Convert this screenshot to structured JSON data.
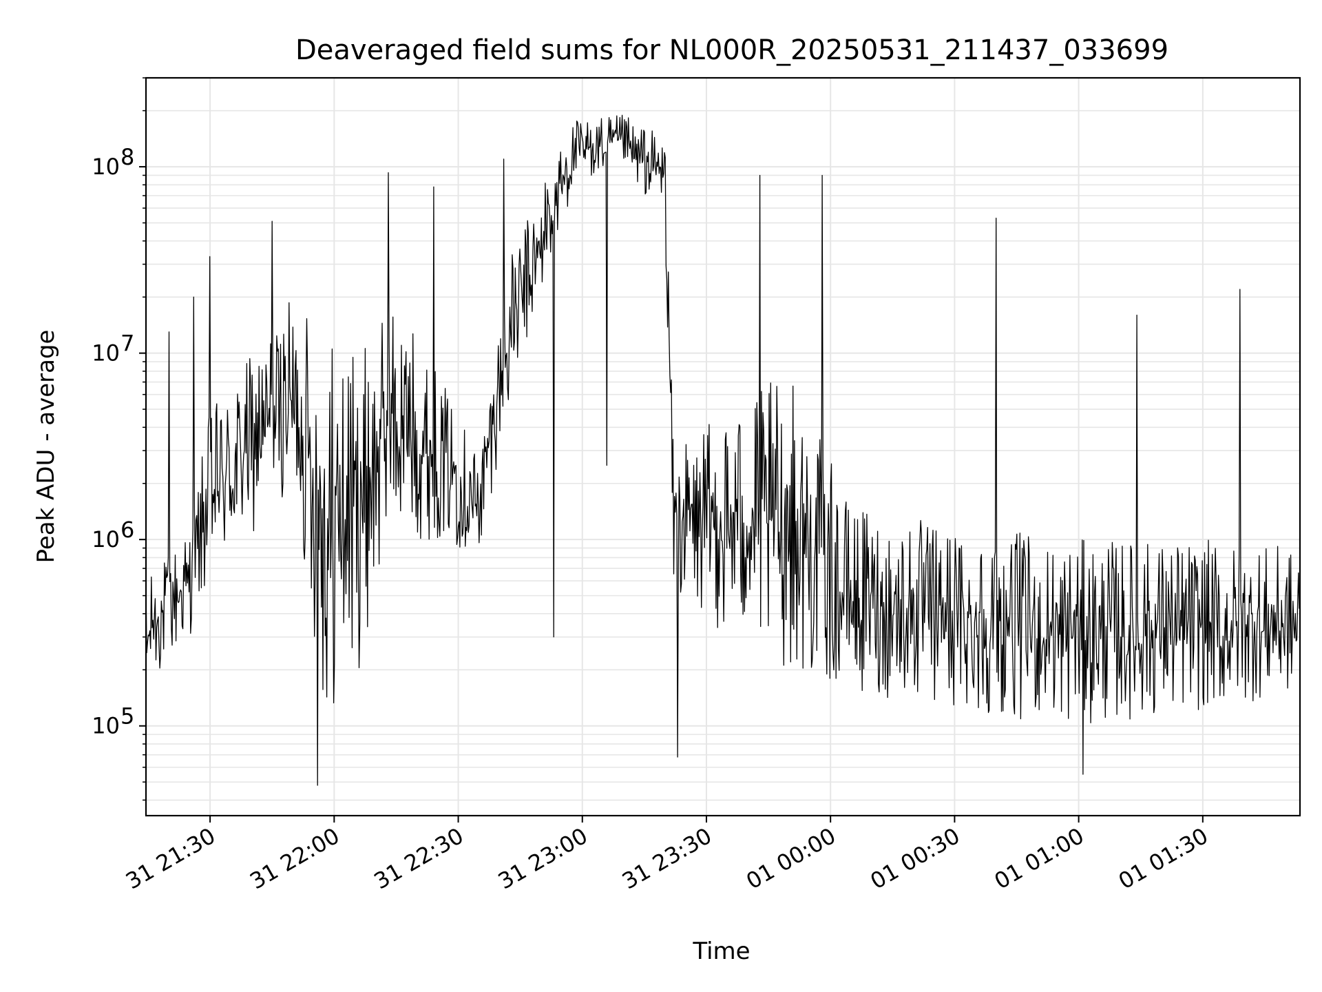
{
  "chart_data": {
    "type": "line",
    "title": "Deaveraged field sums for NL000R_20250531_211437_033699",
    "xlabel": "Time",
    "ylabel": "Peak ADU - average",
    "yscale": "log",
    "ylim": [
      33000,
      300000000
    ],
    "xlim": [
      "2025-05-31 21:14:30",
      "2025-06-01 01:53:30"
    ],
    "grid": true,
    "line_color": "#000000",
    "grid_color": "#e6e6e6",
    "x_ticks": [
      {
        "value": "2025-05-31 21:30:00",
        "label": "31 21:30"
      },
      {
        "value": "2025-05-31 22:00:00",
        "label": "31 22:00"
      },
      {
        "value": "2025-05-31 22:30:00",
        "label": "31 22:30"
      },
      {
        "value": "2025-05-31 23:00:00",
        "label": "31 23:00"
      },
      {
        "value": "2025-05-31 23:30:00",
        "label": "31 23:30"
      },
      {
        "value": "2025-06-01 00:00:00",
        "label": "01 00:00"
      },
      {
        "value": "2025-06-01 00:30:00",
        "label": "01 00:30"
      },
      {
        "value": "2025-06-01 01:00:00",
        "label": "01 01:00"
      },
      {
        "value": "2025-06-01 01:30:00",
        "label": "01 01:30"
      }
    ],
    "y_ticks": [
      {
        "value": 100000,
        "mantissa": "10",
        "exponent": "5"
      },
      {
        "value": 1000000,
        "mantissa": "10",
        "exponent": "6"
      },
      {
        "value": 10000000,
        "mantissa": "10",
        "exponent": "7"
      },
      {
        "value": 100000000,
        "mantissa": "10",
        "exponent": "8"
      }
    ],
    "series": [
      {
        "band_envelope": [
          {
            "x": "2025-05-31 21:14:30",
            "low": 150000,
            "high": 600000
          },
          {
            "x": "2025-05-31 21:25:00",
            "low": 300000,
            "high": 1200000
          },
          {
            "x": "2025-05-31 21:30:00",
            "low": 600000,
            "high": 5000000
          },
          {
            "x": "2025-05-31 21:40:00",
            "low": 1000000,
            "high": 10000000
          },
          {
            "x": "2025-05-31 21:50:00",
            "low": 2000000,
            "high": 20000000
          },
          {
            "x": "2025-05-31 21:58:00",
            "low": 100000,
            "high": 15000000
          },
          {
            "x": "2025-05-31 22:06:00",
            "low": 200000,
            "high": 10000000
          },
          {
            "x": "2025-05-31 22:15:00",
            "low": 1000000,
            "high": 20000000
          },
          {
            "x": "2025-05-31 22:25:00",
            "low": 1000000,
            "high": 8000000
          },
          {
            "x": "2025-05-31 22:35:00",
            "low": 800000,
            "high": 3000000
          },
          {
            "x": "2025-05-31 22:42:00",
            "low": 5000000,
            "high": 30000000
          },
          {
            "x": "2025-05-31 22:50:00",
            "low": 20000000,
            "high": 80000000
          },
          {
            "x": "2025-05-31 22:58:00",
            "low": 80000000,
            "high": 180000000
          },
          {
            "x": "2025-05-31 23:10:00",
            "low": 100000000,
            "high": 190000000
          },
          {
            "x": "2025-05-31 23:20:00",
            "low": 50000000,
            "high": 150000000
          },
          {
            "x": "2025-05-31 23:22:00",
            "low": 500000,
            "high": 3000000
          },
          {
            "x": "2025-05-31 23:35:00",
            "low": 300000,
            "high": 5000000
          },
          {
            "x": "2025-05-31 23:50:00",
            "low": 200000,
            "high": 8000000
          },
          {
            "x": "2025-06-01 00:05:00",
            "low": 150000,
            "high": 1500000
          },
          {
            "x": "2025-06-01 00:30:00",
            "low": 120000,
            "high": 1200000
          },
          {
            "x": "2025-06-01 01:00:00",
            "low": 100000,
            "high": 1000000
          },
          {
            "x": "2025-06-01 01:30:00",
            "low": 120000,
            "high": 1000000
          },
          {
            "x": "2025-06-01 01:53:30",
            "low": 150000,
            "high": 900000
          }
        ],
        "spikes": [
          {
            "x": "2025-05-31 21:20:00",
            "value": 13000000
          },
          {
            "x": "2025-05-31 21:26:00",
            "value": 20000000
          },
          {
            "x": "2025-05-31 21:30:00",
            "value": 33000000
          },
          {
            "x": "2025-05-31 21:45:00",
            "value": 51000000
          },
          {
            "x": "2025-05-31 21:56:00",
            "value": 48000
          },
          {
            "x": "2025-05-31 22:13:00",
            "value": 93000000
          },
          {
            "x": "2025-05-31 22:24:00",
            "value": 78000000
          },
          {
            "x": "2025-05-31 22:41:00",
            "value": 110000000
          },
          {
            "x": "2025-05-31 22:53:00",
            "value": 300000
          },
          {
            "x": "2025-05-31 23:06:00",
            "value": 2500000
          },
          {
            "x": "2025-05-31 23:23:00",
            "value": 68000
          },
          {
            "x": "2025-05-31 23:43:00",
            "value": 90000000
          },
          {
            "x": "2025-05-31 23:58:00",
            "value": 90000000
          },
          {
            "x": "2025-06-01 00:40:00",
            "value": 53000000
          },
          {
            "x": "2025-06-01 01:01:00",
            "value": 55000
          },
          {
            "x": "2025-06-01 01:14:00",
            "value": 16000000
          },
          {
            "x": "2025-06-01 01:39:00",
            "value": 22000000
          }
        ]
      }
    ]
  }
}
